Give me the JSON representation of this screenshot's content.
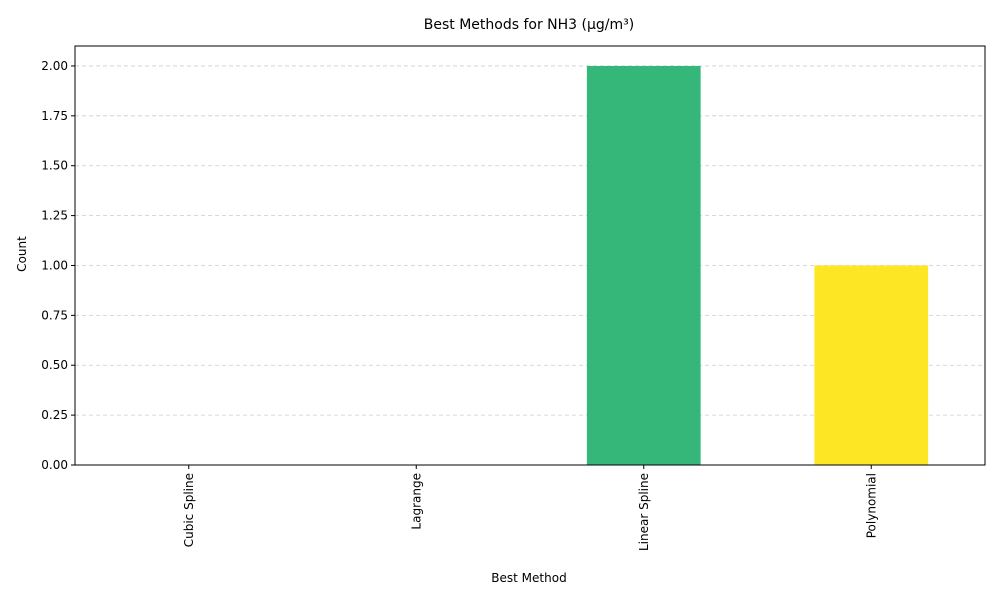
{
  "chart_data": {
    "type": "bar",
    "title": "Best Methods for NH3 (µg/m³)",
    "xlabel": "Best Method",
    "ylabel": "Count",
    "categories": [
      "Cubic Spline",
      "Lagrange",
      "Linear Spline",
      "Polynomial"
    ],
    "values": [
      0,
      0,
      2,
      1
    ],
    "colors": [
      "#440154",
      "#31688e",
      "#35b779",
      "#fde725"
    ],
    "ylim": [
      0,
      2.1
    ],
    "yticks": [
      "0.00",
      "0.25",
      "0.50",
      "0.75",
      "1.00",
      "1.25",
      "1.50",
      "1.75",
      "2.00"
    ],
    "grid": "y-dashed",
    "legend": "none"
  }
}
